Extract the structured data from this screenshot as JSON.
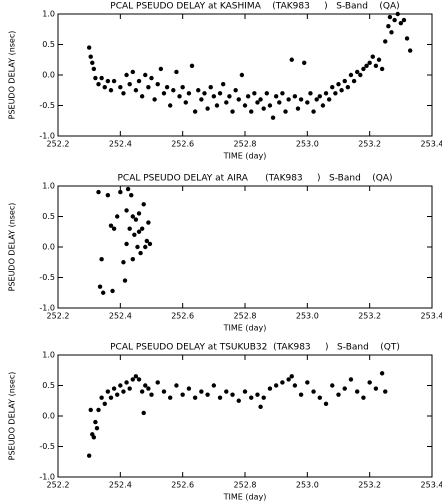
{
  "chart_data": [
    {
      "type": "scatter",
      "title": "PCAL PSEUDO DELAY at KASHIMA    (TAK983     )   S-Band    (QA)",
      "xlabel": "TIME (day)",
      "ylabel": "PSEUDO DELAY (nsec)",
      "color": "#000000",
      "xlim": [
        252.2,
        253.4
      ],
      "ylim": [
        -1.0,
        1.0
      ],
      "xticks": [
        252.2,
        252.4,
        252.6,
        252.8,
        {
          "value": 253.0,
          "label": "253.0"
        },
        253.2,
        253.4
      ],
      "yticks": [
        {
          "value": -1.0,
          "label": "-1.0"
        },
        -0.5,
        {
          "value": 0.0,
          "label": "0.0"
        },
        0.5,
        {
          "value": 1.0,
          "label": "1.0"
        }
      ],
      "x": [
        252.3,
        252.305,
        252.31,
        252.315,
        252.32,
        252.33,
        252.34,
        252.35,
        252.36,
        252.37,
        252.38,
        252.4,
        252.41,
        252.42,
        252.43,
        252.44,
        252.45,
        252.46,
        252.47,
        252.48,
        252.49,
        252.5,
        252.51,
        252.52,
        252.53,
        252.54,
        252.55,
        252.56,
        252.57,
        252.58,
        252.59,
        252.6,
        252.61,
        252.62,
        252.63,
        252.64,
        252.65,
        252.66,
        252.67,
        252.68,
        252.69,
        252.7,
        252.71,
        252.72,
        252.73,
        252.74,
        252.75,
        252.76,
        252.77,
        252.78,
        252.79,
        252.8,
        252.81,
        252.82,
        252.83,
        252.84,
        252.85,
        252.86,
        252.87,
        252.88,
        252.89,
        252.9,
        252.91,
        252.92,
        252.93,
        252.94,
        252.95,
        252.96,
        252.97,
        252.98,
        252.99,
        253.0,
        253.01,
        253.02,
        253.03,
        253.04,
        253.05,
        253.06,
        253.07,
        253.08,
        253.09,
        253.1,
        253.11,
        253.12,
        253.13,
        253.14,
        253.15,
        253.16,
        253.17,
        253.18,
        253.19,
        253.2,
        253.21,
        253.22,
        253.23,
        253.24,
        253.25,
        253.26,
        253.265,
        253.27,
        253.28,
        253.29,
        253.3,
        253.31,
        253.32,
        253.33
      ],
      "values": [
        0.45,
        0.3,
        0.2,
        0.1,
        -0.05,
        -0.15,
        -0.05,
        -0.2,
        -0.1,
        -0.25,
        -0.1,
        -0.2,
        -0.3,
        0.0,
        -0.15,
        0.05,
        -0.25,
        -0.1,
        -0.35,
        0.0,
        -0.2,
        -0.05,
        -0.4,
        -0.15,
        0.1,
        -0.3,
        -0.2,
        -0.5,
        -0.25,
        0.05,
        -0.35,
        -0.2,
        -0.45,
        -0.3,
        0.15,
        -0.6,
        -0.25,
        -0.4,
        -0.3,
        -0.55,
        -0.2,
        -0.35,
        -0.5,
        -0.3,
        -0.15,
        -0.45,
        -0.35,
        -0.6,
        -0.25,
        -0.4,
        0.0,
        -0.5,
        -0.35,
        -0.6,
        -0.3,
        -0.45,
        -0.4,
        -0.55,
        -0.3,
        -0.5,
        -0.7,
        -0.35,
        -0.45,
        -0.3,
        -0.6,
        -0.4,
        0.25,
        -0.35,
        -0.55,
        -0.4,
        0.2,
        -0.45,
        -0.3,
        -0.6,
        -0.4,
        -0.35,
        -0.5,
        -0.3,
        -0.4,
        -0.2,
        -0.3,
        -0.15,
        -0.25,
        -0.1,
        -0.2,
        0.0,
        -0.1,
        0.05,
        0.0,
        0.1,
        0.15,
        0.2,
        0.3,
        0.15,
        0.25,
        0.1,
        0.55,
        0.8,
        0.95,
        0.7,
        0.9,
        1.0,
        0.85,
        0.9,
        0.6,
        0.4
      ]
    },
    {
      "type": "scatter",
      "title": "PCAL PSEUDO DELAY at AIRA      (TAK983     )   S-Band    (QA)",
      "xlabel": "TIME (day)",
      "ylabel": "PSEUDO DELAY (nsec)",
      "color": "#000000",
      "xlim": [
        252.2,
        253.4
      ],
      "ylim": [
        -1.0,
        1.0
      ],
      "xticks": [
        252.2,
        252.4,
        252.6,
        252.8,
        {
          "value": 253.0,
          "label": "253.0"
        },
        253.2,
        253.4
      ],
      "yticks": [
        {
          "value": -1.0,
          "label": "-1.0"
        },
        -0.5,
        {
          "value": 0.0,
          "label": "0.0"
        },
        0.5,
        {
          "value": 1.0,
          "label": "1.0"
        }
      ],
      "x": [
        252.33,
        252.335,
        252.34,
        252.345,
        252.36,
        252.37,
        252.375,
        252.38,
        252.39,
        252.4,
        252.41,
        252.415,
        252.42,
        252.425,
        252.43,
        252.435,
        252.44,
        252.445,
        252.45,
        252.455,
        252.46,
        252.465,
        252.47,
        252.475,
        252.48,
        252.485,
        252.49,
        252.495,
        252.42,
        252.44,
        252.46
      ],
      "values": [
        0.9,
        -0.65,
        -0.2,
        -0.75,
        0.85,
        0.35,
        -0.72,
        0.3,
        0.5,
        0.9,
        -0.25,
        -0.55,
        0.6,
        0.95,
        0.3,
        0.85,
        0.5,
        0.2,
        0.45,
        0.0,
        0.55,
        -0.1,
        0.3,
        0.7,
        0.0,
        0.1,
        0.4,
        0.05,
        0.05,
        -0.2,
        0.25
      ]
    },
    {
      "type": "scatter",
      "title": "PCAL PSEUDO DELAY at TSUKUB32  (TAK983     )   S-Band    (QT)",
      "xlabel": "TIME (day)",
      "ylabel": "PSEUDO DELAY (nsec)",
      "color": "#000000",
      "xlim": [
        252.2,
        253.4
      ],
      "ylim": [
        -1.0,
        1.0
      ],
      "xticks": [
        252.2,
        252.4,
        252.6,
        252.8,
        {
          "value": 253.0,
          "label": "253.0"
        },
        253.2,
        253.4
      ],
      "yticks": [
        {
          "value": -1.0,
          "label": "-1.0"
        },
        -0.5,
        {
          "value": 0.0,
          "label": "0.0"
        },
        0.5,
        {
          "value": 1.0,
          "label": "1.0"
        }
      ],
      "x": [
        252.3,
        252.305,
        252.31,
        252.315,
        252.32,
        252.325,
        252.33,
        252.34,
        252.35,
        252.36,
        252.37,
        252.38,
        252.39,
        252.4,
        252.41,
        252.42,
        252.43,
        252.44,
        252.45,
        252.46,
        252.47,
        252.475,
        252.48,
        252.49,
        252.5,
        252.52,
        252.54,
        252.56,
        252.58,
        252.6,
        252.62,
        252.64,
        252.66,
        252.68,
        252.7,
        252.72,
        252.74,
        252.76,
        252.78,
        252.8,
        252.82,
        252.84,
        252.85,
        252.86,
        252.88,
        252.9,
        252.92,
        252.94,
        252.95,
        252.96,
        252.98,
        253.0,
        253.02,
        253.04,
        253.06,
        253.08,
        253.1,
        253.12,
        253.14,
        253.16,
        253.18,
        253.2,
        253.22,
        253.24,
        253.25
      ],
      "values": [
        -0.65,
        0.1,
        -0.3,
        -0.35,
        -0.1,
        -0.2,
        0.1,
        0.3,
        0.2,
        0.4,
        0.3,
        0.45,
        0.35,
        0.5,
        0.4,
        0.55,
        0.45,
        0.6,
        0.65,
        0.6,
        0.4,
        0.05,
        0.5,
        0.45,
        0.35,
        0.55,
        0.4,
        0.3,
        0.5,
        0.35,
        0.45,
        0.3,
        0.4,
        0.35,
        0.5,
        0.3,
        0.4,
        0.35,
        0.25,
        0.4,
        0.3,
        0.35,
        0.15,
        0.3,
        0.45,
        0.5,
        0.55,
        0.6,
        0.65,
        0.5,
        0.35,
        0.55,
        0.4,
        0.3,
        0.2,
        0.5,
        0.35,
        0.45,
        0.6,
        0.4,
        0.3,
        0.55,
        0.45,
        0.7,
        0.4
      ]
    }
  ]
}
